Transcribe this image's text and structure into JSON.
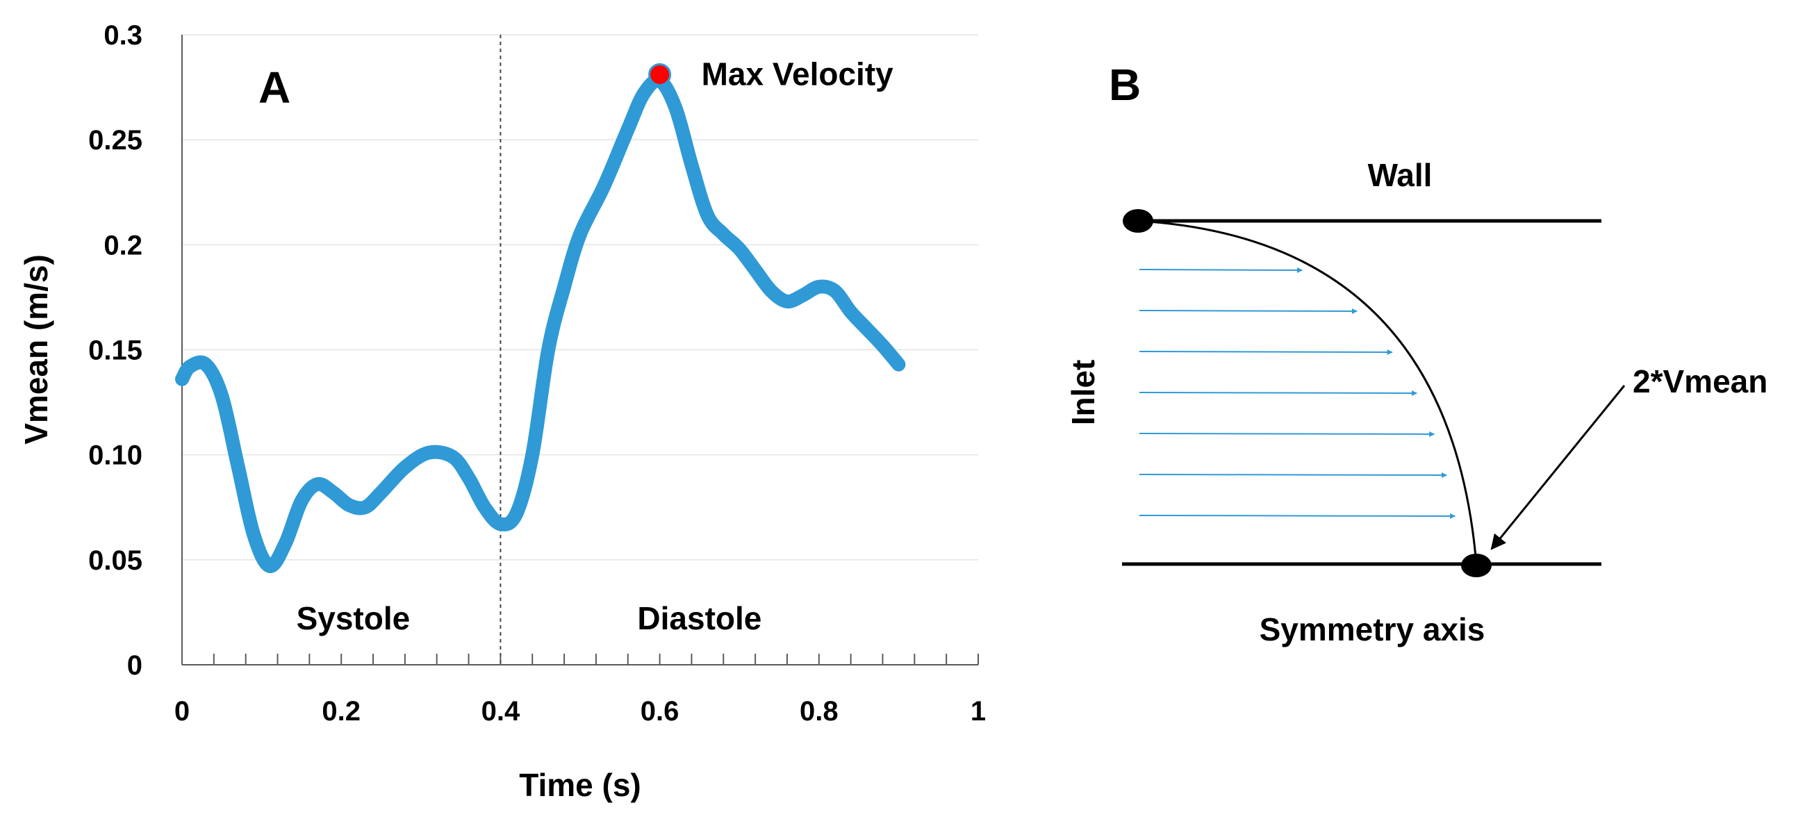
{
  "chart_data": [
    {
      "type": "line",
      "panel_label": "A",
      "xlabel": "Time (s)",
      "ylabel": "Vmean (m/s)",
      "xlim": [
        0,
        1
      ],
      "ylim": [
        0,
        0.3
      ],
      "x_tick_values": [
        0,
        0.2,
        0.4,
        0.6,
        0.8,
        1
      ],
      "x_tick_labels": [
        "0",
        "0.2",
        "0.4",
        "0.6",
        "0.8",
        "1"
      ],
      "y_tick_values": [
        0,
        0.05,
        0.1,
        0.15,
        0.2,
        0.25,
        0.3
      ],
      "y_tick_labels": [
        "0",
        "0.05",
        "0.10",
        "0.15",
        "0.2",
        "0.25",
        "0.3"
      ],
      "grid": true,
      "divider_x": 0.4,
      "phase_labels": [
        "Systole",
        "Diastole"
      ],
      "series": [
        {
          "name": "Vmean",
          "color": "#2f9ad6",
          "x": [
            0,
            0.01,
            0.03,
            0.05,
            0.07,
            0.09,
            0.11,
            0.13,
            0.15,
            0.17,
            0.19,
            0.21,
            0.23,
            0.25,
            0.28,
            0.31,
            0.34,
            0.36,
            0.38,
            0.4,
            0.42,
            0.44,
            0.46,
            0.48,
            0.5,
            0.53,
            0.56,
            0.58,
            0.6,
            0.62,
            0.64,
            0.66,
            0.68,
            0.7,
            0.72,
            0.74,
            0.76,
            0.78,
            0.8,
            0.82,
            0.84,
            0.86,
            0.88,
            0.9
          ],
          "values": [
            0.136,
            0.142,
            0.143,
            0.128,
            0.095,
            0.062,
            0.047,
            0.058,
            0.078,
            0.086,
            0.082,
            0.076,
            0.075,
            0.082,
            0.094,
            0.101,
            0.099,
            0.089,
            0.075,
            0.067,
            0.072,
            0.1,
            0.15,
            0.18,
            0.205,
            0.228,
            0.255,
            0.272,
            0.278,
            0.265,
            0.238,
            0.214,
            0.205,
            0.198,
            0.188,
            0.178,
            0.173,
            0.176,
            0.18,
            0.178,
            0.168,
            0.16,
            0.152,
            0.143
          ]
        }
      ],
      "annotations": [
        {
          "text": "Max Velocity",
          "x": 0.6,
          "y": 0.281,
          "marker_color": "#ff0000"
        }
      ]
    },
    {
      "type": "diagram",
      "panel_label": "B",
      "labels": {
        "wall": "Wall",
        "inlet": "Inlet",
        "symmetry": "Symmetry axis",
        "peak": "2*Vmean"
      },
      "arrow_color": "#2f9ad6",
      "profile_arrow_count": 7
    }
  ]
}
